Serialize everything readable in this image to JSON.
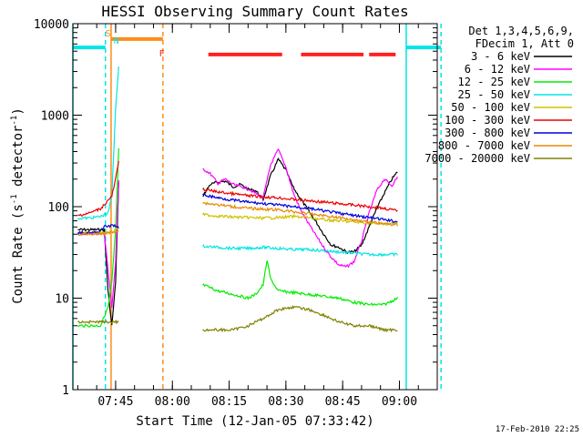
{
  "chart_data": {
    "type": "line",
    "title": "HESSI Observing Summary Count Rates",
    "xlabel": "Start Time (12-Jan-05 07:33:42)",
    "ylabel_main": "Count Rate (s",
    "ylabel_sup1": "-1",
    "ylabel_mid": " detector",
    "ylabel_sup2": "-1",
    "ylabel_end": ")",
    "y_scale": "log",
    "ylim": [
      1,
      10000
    ],
    "xlim": [
      "07:33:42",
      "09:10:00"
    ],
    "x_ticks": [
      {
        "t": 45,
        "label": "07:45"
      },
      {
        "t": 60,
        "label": "08:00"
      },
      {
        "t": 75,
        "label": "08:15"
      },
      {
        "t": 90,
        "label": "08:30"
      },
      {
        "t": 105,
        "label": "08:45"
      },
      {
        "t": 120,
        "label": "09:00"
      }
    ],
    "y_ticks": [
      {
        "v": 1,
        "label": "1"
      },
      {
        "v": 10,
        "label": "10"
      },
      {
        "v": 100,
        "label": "100"
      },
      {
        "v": 1000,
        "label": "1000"
      },
      {
        "v": 10000,
        "label": "10000"
      }
    ],
    "legend_header": [
      "Det 1,3,4,5,6,9,",
      "FDecim 1, Att 0"
    ],
    "legend_placement": "right",
    "footer_stamp": "17-Feb-2010 22:25",
    "flags": [
      {
        "label": "S",
        "color": "#ff8c1a"
      },
      {
        "label": "N",
        "color": "#00e5e5"
      },
      {
        "label": "F",
        "color": "#ff2020"
      }
    ],
    "flag_bars": [
      {
        "name": "night",
        "color": "#00e5e5",
        "level": 5500,
        "segments": [
          [
            33.7,
            42.3
          ],
          [
            121.8,
            131.0
          ]
        ]
      },
      {
        "name": "saa",
        "color": "#ff8c1a",
        "level": 6800,
        "segments": [
          [
            43.8,
            57.5
          ]
        ]
      },
      {
        "name": "flare",
        "color": "#ff2020",
        "level": 4600,
        "segments": [
          [
            69.5,
            89.0
          ],
          [
            94.0,
            110.5
          ],
          [
            112.0,
            119.0
          ]
        ]
      }
    ],
    "series": [
      {
        "name": "3 - 6 keV",
        "color": "#000000",
        "x": [
          35,
          38,
          40,
          42,
          43,
          44,
          45,
          45.8,
          68,
          70,
          72,
          74,
          76,
          78,
          80,
          82,
          84,
          86,
          88,
          90,
          92,
          94,
          96,
          98,
          100,
          102,
          104,
          106,
          108,
          110,
          112,
          114,
          116,
          118,
          119.5
        ],
        "y": [
          56,
          56,
          56,
          56,
          12,
          5,
          15,
          180,
          130,
          175,
          185,
          190,
          165,
          175,
          155,
          150,
          120,
          220,
          330,
          250,
          160,
          120,
          90,
          68,
          50,
          38,
          36,
          32,
          32,
          38,
          60,
          95,
          140,
          200,
          240
        ]
      },
      {
        "name": "6 - 12 keV",
        "color": "#ff00ff",
        "x": [
          35,
          38,
          40,
          42,
          44,
          45,
          45.8,
          68,
          70,
          72,
          74,
          76,
          78,
          80,
          82,
          84,
          86,
          88,
          90,
          92,
          94,
          96,
          98,
          100,
          102,
          104,
          106,
          108,
          110,
          112,
          114,
          116,
          118,
          119.5
        ],
        "y": [
          51,
          51,
          51,
          51,
          8,
          25,
          190,
          260,
          230,
          180,
          200,
          175,
          165,
          158,
          140,
          125,
          290,
          420,
          270,
          140,
          90,
          65,
          48,
          36,
          28,
          23,
          22,
          25,
          42,
          85,
          150,
          200,
          170,
          210
        ]
      },
      {
        "name": "12 - 25 keV",
        "color": "#00ee00",
        "x": [
          35,
          38,
          41,
          43,
          44,
          45,
          45.8,
          68,
          70,
          72,
          74,
          76,
          78,
          80,
          82,
          84,
          85,
          86,
          88,
          92,
          96,
          100,
          104,
          108,
          112,
          116,
          119.5
        ],
        "y": [
          5,
          5,
          5,
          8,
          15,
          55,
          430,
          14,
          13,
          12,
          11.5,
          11,
          10.5,
          10,
          11,
          14,
          26,
          16,
          12,
          11.5,
          11,
          10.5,
          10,
          9,
          8.5,
          8.5,
          10
        ]
      },
      {
        "name": "25 - 50 keV",
        "color": "#00e5e5",
        "x": [
          35,
          38,
          41,
          43,
          44,
          45,
          45.8,
          68,
          72,
          76,
          80,
          84,
          88,
          92,
          96,
          100,
          104,
          108,
          112,
          116,
          119.5
        ],
        "y": [
          75,
          75,
          78,
          85,
          130,
          1200,
          3300,
          37,
          36,
          35,
          35,
          36,
          35,
          34,
          34,
          33,
          32,
          31,
          30,
          30,
          30
        ]
      },
      {
        "name": "50 - 100 keV",
        "color": "#d0c000",
        "x": [
          35,
          40,
          44,
          45,
          45.8,
          68,
          72,
          76,
          80,
          84,
          88,
          92,
          96,
          100,
          104,
          108,
          112,
          116,
          119.5
        ],
        "y": [
          52,
          52,
          53,
          55,
          60,
          82,
          79,
          77,
          76,
          75,
          76,
          78,
          76,
          72,
          70,
          68,
          66,
          65,
          65
        ]
      },
      {
        "name": "100 - 300 keV",
        "color": "#ee0000",
        "x": [
          35,
          38,
          41,
          44,
          45,
          45.8,
          68,
          72,
          76,
          80,
          84,
          88,
          92,
          96,
          100,
          104,
          108,
          112,
          116,
          119.5
        ],
        "y": [
          80,
          85,
          95,
          130,
          200,
          310,
          155,
          145,
          138,
          132,
          128,
          125,
          120,
          116,
          112,
          108,
          104,
          100,
          96,
          90
        ]
      },
      {
        "name": "300 - 800 keV",
        "color": "#0000dd",
        "x": [
          35,
          40,
          42,
          44,
          45,
          45.8,
          68,
          72,
          76,
          80,
          84,
          88,
          92,
          96,
          100,
          104,
          108,
          112,
          116,
          119.5
        ],
        "y": [
          52,
          52,
          60,
          62,
          62,
          58,
          135,
          125,
          118,
          112,
          108,
          104,
          100,
          96,
          90,
          85,
          80,
          76,
          72,
          68
        ]
      },
      {
        "name": "800 - 7000 keV",
        "color": "#e68a00",
        "x": [
          35,
          40,
          44,
          45.8,
          68,
          72,
          76,
          80,
          84,
          88,
          92,
          96,
          100,
          104,
          108,
          112,
          116,
          119.5
        ],
        "y": [
          50,
          50,
          52,
          55,
          110,
          105,
          100,
          96,
          94,
          92,
          88,
          84,
          80,
          76,
          72,
          68,
          65,
          63
        ]
      },
      {
        "name": "7000 - 20000 keV",
        "color": "#808000",
        "x": [
          35,
          38,
          41,
          44,
          45.8,
          68,
          72,
          76,
          80,
          84,
          88,
          92,
          96,
          100,
          104,
          108,
          112,
          116,
          119.5
        ],
        "y": [
          5.5,
          5.5,
          5.5,
          5.5,
          5.5,
          4.5,
          4.5,
          4.5,
          5,
          6,
          7.5,
          8,
          7.5,
          6.5,
          5.5,
          5,
          5,
          4.5,
          4.5
        ]
      }
    ],
    "verticals": [
      {
        "t": 33.7,
        "color": "#00e5e5",
        "dashed": false
      },
      {
        "t": 42.3,
        "color": "#00e5e5",
        "dashed": true
      },
      {
        "t": 43.8,
        "color": "#ff8c1a",
        "dashed": false
      },
      {
        "t": 57.5,
        "color": "#ff8c1a",
        "dashed": true
      },
      {
        "t": 121.8,
        "color": "#00e5e5",
        "dashed": false
      },
      {
        "t": 131.0,
        "color": "#00e5e5",
        "dashed": true
      }
    ]
  }
}
